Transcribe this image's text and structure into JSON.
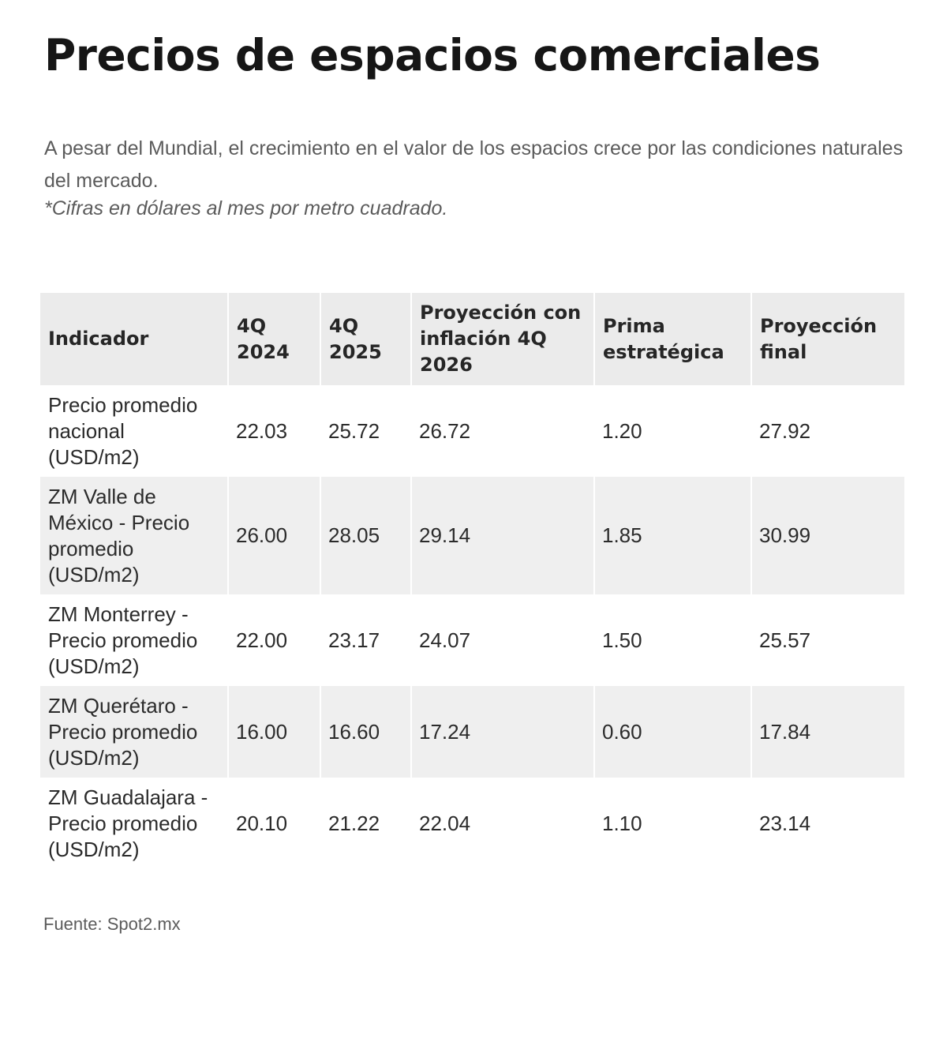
{
  "title": "Precios de espacios comerciales",
  "subtitle": "A pesar del Mundial, el crecimiento en el valor de los espacios crece por las condiciones naturales del mercado.",
  "note": "*Cifras en dólares al mes por metro cuadrado.",
  "source": "Fuente: Spot2.mx",
  "chart_data": {
    "type": "table",
    "columns": [
      "Indicador",
      "4Q 2024",
      "4Q 2025",
      "Proyección con inflación 4Q 2026",
      "Prima estratégica",
      "Proyección final"
    ],
    "rows": [
      [
        "Precio promedio nacional (USD/m2)",
        "22.03",
        "25.72",
        "26.72",
        "1.20",
        "27.92"
      ],
      [
        "ZM Valle de México - Precio promedio (USD/m2)",
        "26.00",
        "28.05",
        "29.14",
        "1.85",
        "30.99"
      ],
      [
        "ZM Monterrey - Precio promedio (USD/m2)",
        "22.00",
        "23.17",
        "24.07",
        "1.50",
        "25.57"
      ],
      [
        "ZM Querétaro - Precio promedio (USD/m2)",
        "16.00",
        "16.60",
        "17.24",
        "0.60",
        "17.84"
      ],
      [
        "ZM Guadalajara - Precio promedio (USD/m2)",
        "20.10",
        "21.22",
        "22.04",
        "1.10",
        "23.14"
      ]
    ]
  },
  "colors": {
    "header_bg": "#ebebeb",
    "stripe_bg": "#efefef",
    "text": "#222222",
    "muted": "#5b5b5b"
  }
}
